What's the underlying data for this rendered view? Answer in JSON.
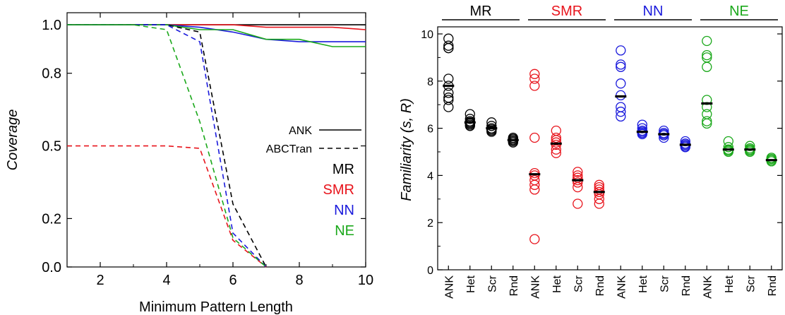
{
  "chart_data": [
    {
      "type": "line",
      "title": "",
      "xlabel": "Minimum Pattern Length",
      "ylabel": "Coverage",
      "xlim": [
        1,
        10
      ],
      "ylim": [
        0,
        1.05
      ],
      "xticks": [
        2,
        4,
        6,
        8,
        10
      ],
      "yticks": [
        0.0,
        0.2,
        0.5,
        0.8,
        1.0
      ],
      "ytick_labels": [
        "0.0",
        "0.2",
        "0.5",
        "0.8",
        "1.0"
      ],
      "grid": false,
      "style_legend": [
        {
          "name": "ANK",
          "dash": "solid"
        },
        {
          "name": "ABCTran",
          "dash": "dashed"
        }
      ],
      "color_legend": [
        {
          "name": "MR",
          "color": "#000000"
        },
        {
          "name": "SMR",
          "color": "#e8141c"
        },
        {
          "name": "NN",
          "color": "#1a1adc"
        },
        {
          "name": "NE",
          "color": "#1aa81a"
        }
      ],
      "series": [
        {
          "group": "ANK",
          "dash": "solid",
          "color": "#000000",
          "x": [
            1,
            2,
            3,
            4,
            5,
            6,
            7,
            8,
            9,
            10
          ],
          "y": [
            1.0,
            1.0,
            1.0,
            1.0,
            1.0,
            1.0,
            1.0,
            1.0,
            1.0,
            1.0
          ]
        },
        {
          "group": "ANK",
          "dash": "solid",
          "color": "#e8141c",
          "x": [
            1,
            2,
            3,
            4,
            5,
            6,
            7,
            8,
            9,
            10
          ],
          "y": [
            1.0,
            1.0,
            1.0,
            1.0,
            1.0,
            1.0,
            0.99,
            0.99,
            0.99,
            0.98
          ]
        },
        {
          "group": "ANK",
          "dash": "solid",
          "color": "#1a1adc",
          "x": [
            1,
            2,
            3,
            4,
            5,
            6,
            7,
            8,
            9,
            10
          ],
          "y": [
            1.0,
            1.0,
            1.0,
            1.0,
            0.99,
            0.97,
            0.94,
            0.93,
            0.93,
            0.93
          ]
        },
        {
          "group": "ANK",
          "dash": "solid",
          "color": "#1aa81a",
          "x": [
            1,
            2,
            3,
            4,
            5,
            6,
            7,
            8,
            9,
            10
          ],
          "y": [
            1.0,
            1.0,
            1.0,
            1.0,
            0.98,
            0.98,
            0.94,
            0.94,
            0.91,
            0.91
          ]
        },
        {
          "group": "ABCTran",
          "dash": "dashed",
          "color": "#000000",
          "x": [
            1,
            2,
            3,
            4,
            5,
            6,
            7
          ],
          "y": [
            1.0,
            1.0,
            1.0,
            1.0,
            0.97,
            0.26,
            0.0
          ]
        },
        {
          "group": "ABCTran",
          "dash": "dashed",
          "color": "#e8141c",
          "x": [
            1,
            2,
            3,
            4,
            5,
            6,
            7
          ],
          "y": [
            0.5,
            0.5,
            0.5,
            0.5,
            0.49,
            0.11,
            0.0
          ]
        },
        {
          "group": "ABCTran",
          "dash": "dashed",
          "color": "#1a1adc",
          "x": [
            1,
            2,
            3,
            4,
            5,
            6,
            7
          ],
          "y": [
            1.0,
            1.0,
            1.0,
            1.0,
            0.93,
            0.14,
            0.0
          ]
        },
        {
          "group": "ABCTran",
          "dash": "dashed",
          "color": "#1aa81a",
          "x": [
            1,
            2,
            3,
            4,
            5,
            6,
            7
          ],
          "y": [
            1.0,
            1.0,
            1.0,
            0.98,
            0.6,
            0.12,
            0.0
          ]
        }
      ]
    },
    {
      "type": "scatter",
      "title": "",
      "xlabel": "",
      "ylabel": "Familiarity (s, R)",
      "ylim": [
        0,
        10.3
      ],
      "yticks": [
        0,
        2,
        4,
        6,
        8,
        10
      ],
      "grid": false,
      "categories": [
        "ANK",
        "Het",
        "Scr",
        "Rnd"
      ],
      "groups": [
        {
          "name": "MR",
          "color": "#000000",
          "items": [
            {
              "category": "ANK",
              "mean": 7.8,
              "points": [
                9.8,
                9.5,
                9.4,
                9.4,
                8.1,
                7.8,
                7.5,
                7.3,
                7.2,
                6.9
              ]
            },
            {
              "category": "Het",
              "mean": 6.25,
              "points": [
                6.6,
                6.4,
                6.3,
                6.25,
                6.2,
                6.15,
                6.1
              ]
            },
            {
              "category": "Scr",
              "mean": 6.0,
              "points": [
                6.25,
                6.1,
                6.0,
                5.95,
                5.9,
                5.85
              ]
            },
            {
              "category": "Rnd",
              "mean": 5.5,
              "points": [
                5.6,
                5.55,
                5.5,
                5.45,
                5.4
              ]
            }
          ]
        },
        {
          "name": "SMR",
          "color": "#e8141c",
          "items": [
            {
              "category": "ANK",
              "mean": 4.05,
              "points": [
                8.3,
                8.1,
                7.8,
                5.6,
                4.1,
                4.0,
                3.8,
                3.6,
                3.4,
                1.3
              ]
            },
            {
              "category": "Het",
              "mean": 5.35,
              "points": [
                5.9,
                5.6,
                5.5,
                5.4,
                5.3,
                5.1,
                4.95
              ]
            },
            {
              "category": "Scr",
              "mean": 3.8,
              "points": [
                4.15,
                4.0,
                3.9,
                3.8,
                3.7,
                3.5,
                2.8
              ]
            },
            {
              "category": "Rnd",
              "mean": 3.3,
              "points": [
                3.6,
                3.5,
                3.4,
                3.3,
                3.2,
                3.0,
                2.8
              ]
            }
          ]
        },
        {
          "name": "NN",
          "color": "#1a1adc",
          "items": [
            {
              "category": "ANK",
              "mean": 7.35,
              "points": [
                9.3,
                8.7,
                8.6,
                7.9,
                7.4,
                6.9,
                6.7,
                6.5
              ]
            },
            {
              "category": "Het",
              "mean": 5.85,
              "points": [
                6.15,
                6.0,
                5.9,
                5.85,
                5.8,
                5.75
              ]
            },
            {
              "category": "Scr",
              "mean": 5.75,
              "points": [
                5.9,
                5.8,
                5.75,
                5.7,
                5.6
              ]
            },
            {
              "category": "Rnd",
              "mean": 5.3,
              "points": [
                5.45,
                5.35,
                5.3,
                5.25,
                5.2
              ]
            }
          ]
        },
        {
          "name": "NE",
          "color": "#1aa81a",
          "items": [
            {
              "category": "ANK",
              "mean": 7.05,
              "points": [
                9.7,
                9.1,
                9.0,
                8.6,
                7.2,
                6.9,
                6.6,
                6.3,
                6.2
              ]
            },
            {
              "category": "Het",
              "mean": 5.1,
              "points": [
                5.45,
                5.2,
                5.1,
                5.05,
                5.0
              ]
            },
            {
              "category": "Scr",
              "mean": 5.1,
              "points": [
                5.25,
                5.15,
                5.1,
                5.05,
                5.0
              ]
            },
            {
              "category": "Rnd",
              "mean": 4.65,
              "points": [
                4.75,
                4.7,
                4.65,
                4.6
              ]
            }
          ]
        }
      ]
    }
  ]
}
